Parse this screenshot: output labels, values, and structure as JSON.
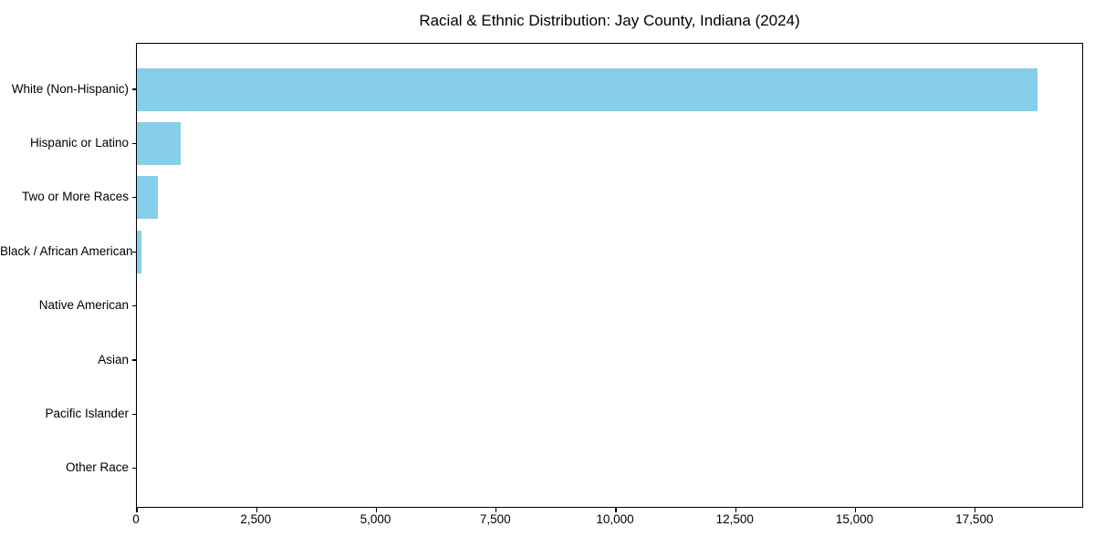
{
  "title": "Racial & Ethnic Distribution: Jay County, Indiana (2024)",
  "chart_data": {
    "type": "bar",
    "orientation": "horizontal",
    "title": "Racial & Ethnic Distribution: Jay County, Indiana (2024)",
    "categories": [
      "White (Non-Hispanic)",
      "Hispanic or Latino",
      "Two or More Races",
      "Black / African American",
      "Native American",
      "Asian",
      "Pacific Islander",
      "Other Race"
    ],
    "values": [
      18800,
      910,
      430,
      100,
      0,
      0,
      0,
      0
    ],
    "xlabel": "",
    "ylabel": "",
    "xlim": [
      0,
      19770
    ],
    "x_ticks": [
      0,
      2500,
      5000,
      7500,
      10000,
      12500,
      15000,
      17500
    ],
    "x_tick_labels": [
      "0",
      "2,500",
      "5,000",
      "7,500",
      "10,000",
      "12,500",
      "15,000",
      "17,500"
    ],
    "grid": "off",
    "legend": "none",
    "bar_color": "#87CEEB",
    "text_color": "#000000",
    "background_color": "#ffffff"
  }
}
